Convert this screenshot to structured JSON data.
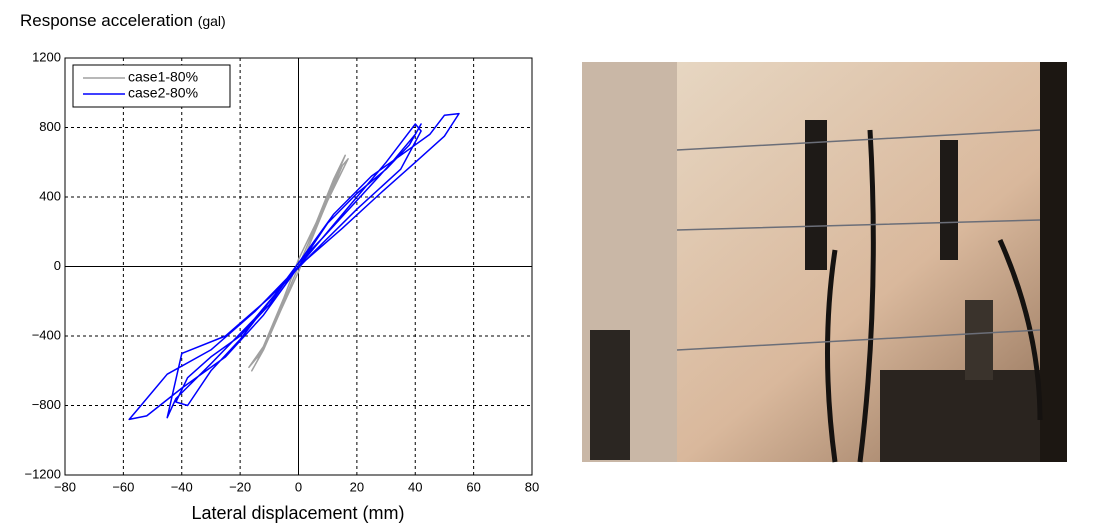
{
  "chart_data": {
    "type": "line",
    "y_label": "Response acceleration",
    "y_label_unit": "(gal)",
    "x_label": "Lateral displacement (mm)",
    "xlim": [
      -80,
      80
    ],
    "xticks": [
      {
        "value": -80,
        "label": "−80"
      },
      {
        "value": -60,
        "label": "−60"
      },
      {
        "value": -40,
        "label": "−40"
      },
      {
        "value": -20,
        "label": "−20"
      },
      0,
      20,
      40,
      60,
      80
    ],
    "ylim": [
      -1200,
      1200
    ],
    "yticks": [
      {
        "value": -1200,
        "label": "−1200"
      },
      {
        "value": -800,
        "label": "−800"
      },
      {
        "value": -400,
        "label": "−400"
      },
      0,
      400,
      800,
      1200
    ],
    "grid": true,
    "legend": "upper-left",
    "series": [
      {
        "name": "case1-80%",
        "color": "#a0a0a0",
        "x": [
          0,
          5,
          10,
          14,
          16,
          12,
          6,
          0,
          -5,
          -10,
          -14,
          -16,
          -12,
          -6,
          0,
          8,
          15,
          17,
          10,
          3,
          -4,
          -12,
          -17,
          -13,
          -5,
          0
        ],
        "values": [
          0,
          200,
          400,
          560,
          640,
          500,
          250,
          40,
          -180,
          -380,
          -540,
          -600,
          -480,
          -250,
          -30,
          300,
          580,
          620,
          380,
          120,
          -160,
          -460,
          -580,
          -500,
          -200,
          0
        ]
      },
      {
        "name": "case2-80%",
        "color": "#0000ff",
        "x": [
          0,
          10,
          20,
          30,
          38,
          42,
          40,
          32,
          20,
          8,
          0,
          -10,
          -20,
          -30,
          -38,
          -42,
          -38,
          -30,
          -20,
          -8,
          0,
          12,
          25,
          35,
          45,
          50,
          55,
          50,
          40,
          28,
          15,
          0,
          -15,
          -30,
          -45,
          -55,
          -58,
          -52,
          -40,
          -25,
          -12,
          0,
          15,
          30,
          40,
          42,
          35,
          20,
          5,
          -10,
          -25,
          -40,
          -45,
          -42,
          -30,
          -15,
          0
        ],
        "values": [
          0,
          250,
          420,
          560,
          700,
          820,
          760,
          600,
          380,
          160,
          20,
          -220,
          -400,
          -520,
          -640,
          -780,
          -800,
          -600,
          -420,
          -160,
          20,
          300,
          520,
          640,
          760,
          870,
          880,
          750,
          600,
          420,
          220,
          0,
          -260,
          -480,
          -620,
          -820,
          -880,
          -860,
          -700,
          -520,
          -280,
          0,
          300,
          600,
          820,
          780,
          560,
          330,
          80,
          -180,
          -400,
          -500,
          -870,
          -760,
          -560,
          -300,
          0
        ]
      }
    ]
  }
}
